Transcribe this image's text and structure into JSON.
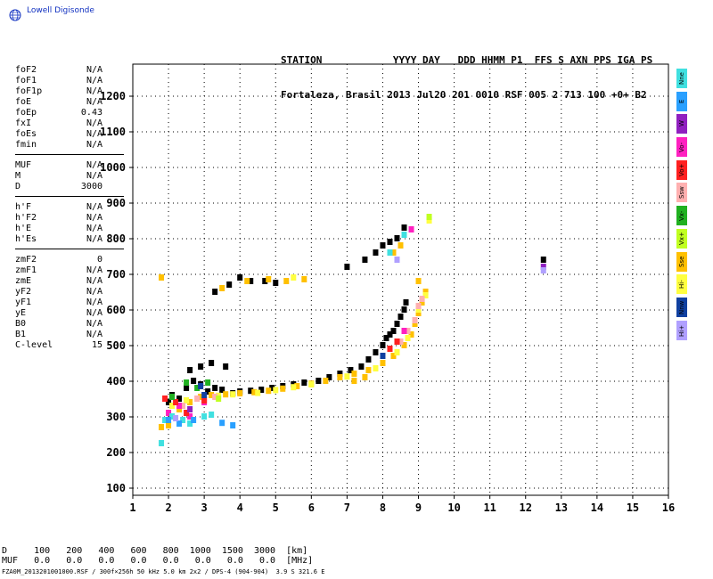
{
  "logo": {
    "text": "Lowell Digisonde",
    "icon": "globe-icon"
  },
  "header": {
    "line1": "STATION            YYYY DAY   DDD HHMM P1  FFS S AXN PPS IGA PS",
    "line2": "Fortaleza, Brasil 2013 Jul20 201 0010 RSF 005 2 713 100 +0+ B2"
  },
  "params": {
    "group1": [
      {
        "label": "foF2",
        "value": "N/A"
      },
      {
        "label": "foF1",
        "value": "N/A"
      },
      {
        "label": "foF1p",
        "value": "N/A"
      },
      {
        "label": "foE",
        "value": "N/A"
      },
      {
        "label": "foEp",
        "value": "0.43"
      },
      {
        "label": "fxI",
        "value": "N/A"
      },
      {
        "label": "foEs",
        "value": "N/A"
      },
      {
        "label": "fmin",
        "value": "N/A"
      }
    ],
    "group2": [
      {
        "label": "MUF",
        "value": "N/A"
      },
      {
        "label": "M",
        "value": "N/A"
      },
      {
        "label": "D",
        "value": "3000"
      }
    ],
    "group3": [
      {
        "label": "h'F",
        "value": "N/A"
      },
      {
        "label": "h'F2",
        "value": "N/A"
      },
      {
        "label": "h'E",
        "value": "N/A"
      },
      {
        "label": "h'Es",
        "value": "N/A"
      }
    ],
    "group4": [
      {
        "label": "zmF2",
        "value": "0"
      },
      {
        "label": "zmF1",
        "value": "N/A"
      },
      {
        "label": "zmE",
        "value": "N/A"
      },
      {
        "label": "yF2",
        "value": "N/A"
      },
      {
        "label": "yF1",
        "value": "N/A"
      },
      {
        "label": "yE",
        "value": "N/A"
      },
      {
        "label": "B0",
        "value": "N/A"
      },
      {
        "label": "B1",
        "value": "N/A"
      },
      {
        "label": "C-level",
        "value": "15"
      }
    ]
  },
  "legend": [
    {
      "label": "Nne",
      "color": "#40e0e0"
    },
    {
      "label": "E",
      "color": "#2aa0ff"
    },
    {
      "label": "W",
      "color": "#9020c0"
    },
    {
      "label": "Vo-",
      "color": "#ff20c0"
    },
    {
      "label": "Vo+",
      "color": "#ff2020"
    },
    {
      "label": "Ssw",
      "color": "#ffb0b0"
    },
    {
      "label": "Vx-",
      "color": "#20b020"
    },
    {
      "label": "Vx+",
      "color": "#c0ff20"
    },
    {
      "label": "Sse",
      "color": "#ffc000"
    },
    {
      "label": "Hi-",
      "color": "#ffff40"
    },
    {
      "label": "Nnw",
      "color": "#1040a0"
    },
    {
      "label": "Hi+",
      "color": "#b0a0ff"
    }
  ],
  "footer": {
    "d_row": "D     100   200   400   600   800  1000  1500  3000  [km]",
    "muf_row": "MUF   0.0   0.0   0.0   0.0   0.0   0.0   0.0   0.0  [MHz]",
    "filename": "FZA0M_2013201001000.RSF / 300f×256h 50 kHz 5.0 km 2x2 / DPS-4 (904-904)  3.9 S 321.6 E"
  },
  "chart_data": {
    "type": "scatter",
    "xlabel": "",
    "ylabel": "",
    "xlim": [
      1,
      16
    ],
    "ylim": [
      80,
      1290
    ],
    "x_ticks": [
      1,
      2,
      3,
      4,
      5,
      6,
      7,
      8,
      9,
      10,
      11,
      12,
      13,
      14,
      15,
      16
    ],
    "y_ticks": [
      100,
      200,
      300,
      400,
      500,
      600,
      700,
      800,
      900,
      1000,
      1100,
      1200
    ],
    "grid": true,
    "series": [
      {
        "color": "#000000",
        "points": [
          [
            2.0,
            340
          ],
          [
            2.1,
            360
          ],
          [
            2.3,
            350
          ],
          [
            2.5,
            380
          ],
          [
            2.7,
            400
          ],
          [
            2.9,
            390
          ],
          [
            3.1,
            370
          ],
          [
            3.3,
            380
          ],
          [
            3.5,
            375
          ],
          [
            3.8,
            365
          ],
          [
            4.0,
            370
          ],
          [
            4.3,
            372
          ],
          [
            4.6,
            375
          ],
          [
            4.9,
            380
          ],
          [
            5.2,
            385
          ],
          [
            5.5,
            390
          ],
          [
            5.8,
            395
          ],
          [
            6.2,
            400
          ],
          [
            6.5,
            410
          ],
          [
            6.8,
            420
          ],
          [
            7.1,
            430
          ],
          [
            7.4,
            440
          ],
          [
            7.6,
            460
          ],
          [
            7.8,
            480
          ],
          [
            8.0,
            500
          ],
          [
            8.1,
            520
          ],
          [
            8.2,
            530
          ],
          [
            8.3,
            540
          ],
          [
            8.4,
            560
          ],
          [
            8.5,
            580
          ],
          [
            8.6,
            600
          ],
          [
            8.65,
            620
          ],
          [
            7.0,
            720
          ],
          [
            7.5,
            740
          ],
          [
            7.8,
            760
          ],
          [
            8.0,
            780
          ],
          [
            8.2,
            790
          ],
          [
            8.4,
            800
          ],
          [
            8.6,
            830
          ],
          [
            3.3,
            650
          ],
          [
            3.7,
            670
          ],
          [
            4.0,
            690
          ],
          [
            4.3,
            680
          ],
          [
            4.7,
            680
          ],
          [
            5.0,
            675
          ],
          [
            2.6,
            430
          ],
          [
            2.9,
            440
          ],
          [
            3.2,
            450
          ],
          [
            3.6,
            440
          ],
          [
            12.5,
            740
          ]
        ]
      },
      {
        "color": "#ffc000",
        "points": [
          [
            1.8,
            270
          ],
          [
            2.0,
            275
          ],
          [
            2.3,
            320
          ],
          [
            2.6,
            340
          ],
          [
            2.9,
            355
          ],
          [
            3.2,
            360
          ],
          [
            3.6,
            362
          ],
          [
            4.0,
            365
          ],
          [
            4.4,
            368
          ],
          [
            4.8,
            372
          ],
          [
            5.2,
            378
          ],
          [
            5.6,
            385
          ],
          [
            6.0,
            392
          ],
          [
            6.4,
            400
          ],
          [
            6.8,
            410
          ],
          [
            7.2,
            420
          ],
          [
            7.6,
            430
          ],
          [
            8.0,
            450
          ],
          [
            8.3,
            470
          ],
          [
            8.6,
            500
          ],
          [
            8.8,
            530
          ],
          [
            8.9,
            560
          ],
          [
            9.0,
            590
          ],
          [
            9.1,
            620
          ],
          [
            9.2,
            650
          ],
          [
            9.0,
            680
          ],
          [
            1.8,
            690
          ],
          [
            3.5,
            660
          ],
          [
            4.2,
            680
          ],
          [
            4.8,
            685
          ],
          [
            5.3,
            680
          ],
          [
            5.8,
            685
          ],
          [
            8.3,
            760
          ],
          [
            8.5,
            780
          ],
          [
            7.2,
            400
          ],
          [
            7.5,
            410
          ]
        ]
      },
      {
        "color": "#ffff40",
        "points": [
          [
            2.1,
            330
          ],
          [
            2.5,
            345
          ],
          [
            3.0,
            350
          ],
          [
            3.4,
            358
          ],
          [
            3.8,
            362
          ],
          [
            4.5,
            366
          ],
          [
            5.0,
            374
          ],
          [
            5.5,
            382
          ],
          [
            6.0,
            390
          ],
          [
            7.0,
            412
          ],
          [
            7.8,
            435
          ],
          [
            8.4,
            480
          ],
          [
            8.7,
            520
          ],
          [
            9.0,
            600
          ],
          [
            9.2,
            640
          ],
          [
            5.5,
            690
          ],
          [
            9.3,
            850
          ]
        ]
      },
      {
        "color": "#ffb0b0",
        "points": [
          [
            2.4,
            330
          ],
          [
            2.8,
            350
          ],
          [
            3.3,
            355
          ],
          [
            8.5,
            510
          ],
          [
            8.7,
            540
          ],
          [
            8.9,
            570
          ],
          [
            9.0,
            610
          ],
          [
            9.1,
            630
          ]
        ]
      },
      {
        "color": "#ff20c0",
        "points": [
          [
            2.0,
            310
          ],
          [
            2.3,
            330
          ],
          [
            2.6,
            300
          ],
          [
            3.0,
            340
          ],
          [
            8.6,
            540
          ],
          [
            8.8,
            825
          ]
        ]
      },
      {
        "color": "#ff2020",
        "points": [
          [
            1.9,
            350
          ],
          [
            2.2,
            340
          ],
          [
            2.5,
            310
          ],
          [
            3.0,
            345
          ],
          [
            8.2,
            490
          ],
          [
            8.4,
            510
          ]
        ]
      },
      {
        "color": "#40e0e0",
        "points": [
          [
            1.8,
            225
          ],
          [
            1.9,
            290
          ],
          [
            2.1,
            300
          ],
          [
            2.4,
            290
          ],
          [
            2.6,
            280
          ],
          [
            3.0,
            300
          ],
          [
            3.2,
            305
          ],
          [
            8.2,
            760
          ],
          [
            8.6,
            810
          ]
        ]
      },
      {
        "color": "#2aa0ff",
        "points": [
          [
            2.0,
            290
          ],
          [
            2.3,
            280
          ],
          [
            2.7,
            290
          ],
          [
            3.5,
            282
          ],
          [
            3.8,
            275
          ]
        ]
      },
      {
        "color": "#20b020",
        "points": [
          [
            2.1,
            355
          ],
          [
            2.5,
            395
          ],
          [
            2.8,
            380
          ],
          [
            3.1,
            395
          ]
        ]
      },
      {
        "color": "#9020c0",
        "points": [
          [
            2.6,
            320
          ],
          [
            12.5,
            720
          ]
        ]
      },
      {
        "color": "#c0ff20",
        "points": [
          [
            3.4,
            350
          ],
          [
            9.3,
            860
          ]
        ]
      },
      {
        "color": "#1040a0",
        "points": [
          [
            2.9,
            385
          ],
          [
            3.0,
            360
          ],
          [
            8.0,
            470
          ]
        ]
      },
      {
        "color": "#b0a0ff",
        "points": [
          [
            12.5,
            710
          ],
          [
            8.4,
            740
          ],
          [
            2.2,
            295
          ]
        ]
      }
    ]
  }
}
